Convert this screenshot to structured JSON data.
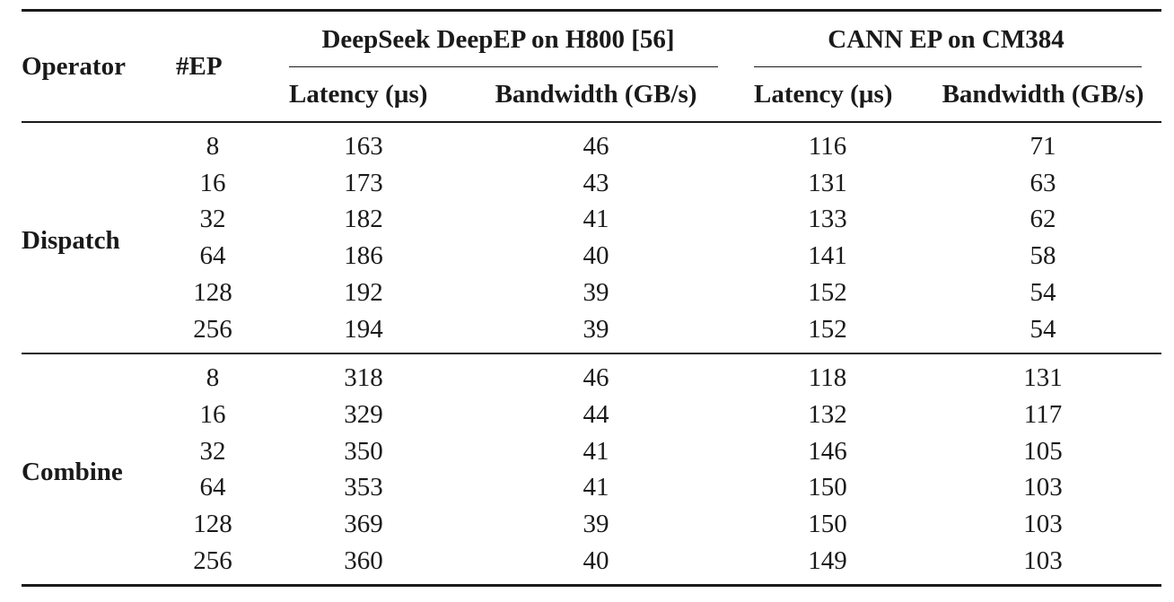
{
  "table": {
    "header": {
      "operator": "Operator",
      "ep": "#EP",
      "group1": "DeepSeek DeepEP on H800 [56]",
      "group2": "CANN EP on CM384",
      "latency": "Latency (µs)",
      "bandwidth": "Bandwidth (GB/s)"
    },
    "sections": [
      {
        "operator": "Dispatch",
        "rows": [
          {
            "ep": "8",
            "lat1": "163",
            "bw1": "46",
            "lat2": "116",
            "bw2": "71"
          },
          {
            "ep": "16",
            "lat1": "173",
            "bw1": "43",
            "lat2": "131",
            "bw2": "63"
          },
          {
            "ep": "32",
            "lat1": "182",
            "bw1": "41",
            "lat2": "133",
            "bw2": "62"
          },
          {
            "ep": "64",
            "lat1": "186",
            "bw1": "40",
            "lat2": "141",
            "bw2": "58"
          },
          {
            "ep": "128",
            "lat1": "192",
            "bw1": "39",
            "lat2": "152",
            "bw2": "54"
          },
          {
            "ep": "256",
            "lat1": "194",
            "bw1": "39",
            "lat2": "152",
            "bw2": "54"
          }
        ]
      },
      {
        "operator": "Combine",
        "rows": [
          {
            "ep": "8",
            "lat1": "318",
            "bw1": "46",
            "lat2": "118",
            "bw2": "131"
          },
          {
            "ep": "16",
            "lat1": "329",
            "bw1": "44",
            "lat2": "132",
            "bw2": "117"
          },
          {
            "ep": "32",
            "lat1": "350",
            "bw1": "41",
            "lat2": "146",
            "bw2": "105"
          },
          {
            "ep": "64",
            "lat1": "353",
            "bw1": "41",
            "lat2": "150",
            "bw2": "103"
          },
          {
            "ep": "128",
            "lat1": "369",
            "bw1": "39",
            "lat2": "150",
            "bw2": "103"
          },
          {
            "ep": "256",
            "lat1": "360",
            "bw1": "40",
            "lat2": "149",
            "bw2": "103"
          }
        ]
      }
    ]
  }
}
